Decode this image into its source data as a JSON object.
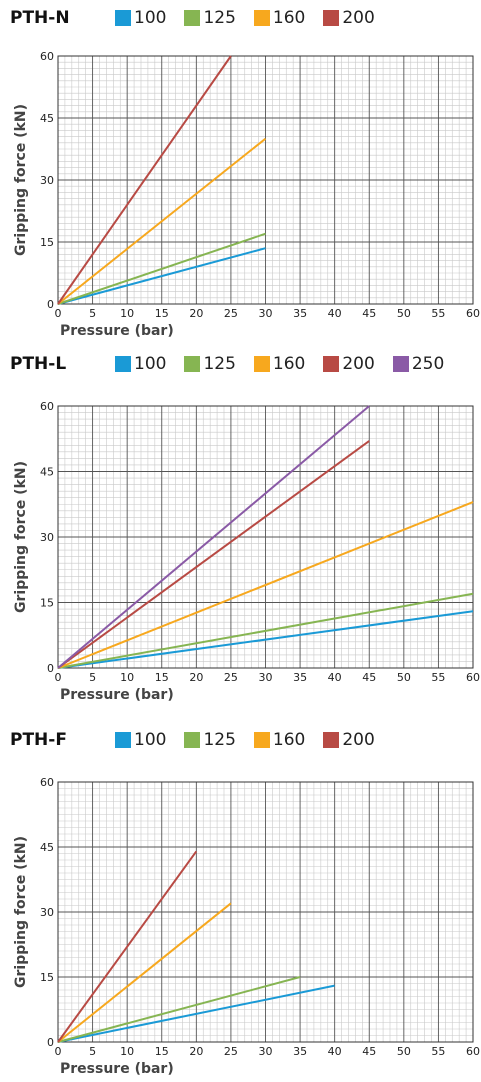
{
  "chart_data": [
    {
      "type": "line",
      "title": "PTH-N",
      "xlabel": "Pressure (bar)",
      "ylabel": "Gripping force (kN)",
      "xlim": [
        0,
        60
      ],
      "ylim": [
        0,
        60
      ],
      "xticks": [
        0,
        5,
        10,
        15,
        20,
        25,
        30,
        35,
        40,
        45,
        50,
        55,
        60
      ],
      "yticks": [
        0,
        15,
        30,
        45,
        60
      ],
      "grid": true,
      "legend_position": "top",
      "series": [
        {
          "name": "100",
          "color": "#1a9ad6",
          "x": [
            0,
            30
          ],
          "y": [
            0,
            13.5
          ]
        },
        {
          "name": "125",
          "color": "#86b552",
          "x": [
            0,
            30
          ],
          "y": [
            0,
            17
          ]
        },
        {
          "name": "160",
          "color": "#f7a81e",
          "x": [
            0,
            30
          ],
          "y": [
            0,
            40
          ]
        },
        {
          "name": "200",
          "color": "#b84a44",
          "x": [
            0,
            25
          ],
          "y": [
            0,
            60
          ]
        }
      ]
    },
    {
      "type": "line",
      "title": "PTH-L",
      "xlabel": "Pressure (bar)",
      "ylabel": "Gripping force (kN)",
      "xlim": [
        0,
        60
      ],
      "ylim": [
        0,
        60
      ],
      "xticks": [
        0,
        5,
        10,
        15,
        20,
        25,
        30,
        35,
        40,
        45,
        50,
        55,
        60
      ],
      "yticks": [
        0,
        15,
        30,
        45,
        60
      ],
      "grid": true,
      "legend_position": "top",
      "series": [
        {
          "name": "100",
          "color": "#1a9ad6",
          "x": [
            0,
            60
          ],
          "y": [
            0,
            13
          ]
        },
        {
          "name": "125",
          "color": "#86b552",
          "x": [
            0,
            60
          ],
          "y": [
            0,
            17
          ]
        },
        {
          "name": "160",
          "color": "#f7a81e",
          "x": [
            0,
            60
          ],
          "y": [
            0,
            38
          ]
        },
        {
          "name": "200",
          "color": "#b84a44",
          "x": [
            0,
            45
          ],
          "y": [
            0,
            52
          ]
        },
        {
          "name": "250",
          "color": "#8a5aa6",
          "x": [
            0,
            45
          ],
          "y": [
            0,
            60
          ]
        }
      ]
    },
    {
      "type": "line",
      "title": "PTH-F",
      "xlabel": "Pressure (bar)",
      "ylabel": "Gripping force (kN)",
      "xlim": [
        0,
        60
      ],
      "ylim": [
        0,
        60
      ],
      "xticks": [
        0,
        5,
        10,
        15,
        20,
        25,
        30,
        35,
        40,
        45,
        50,
        55,
        60
      ],
      "yticks": [
        0,
        15,
        30,
        45,
        60
      ],
      "grid": true,
      "legend_position": "top",
      "series": [
        {
          "name": "100",
          "color": "#1a9ad6",
          "x": [
            0,
            40
          ],
          "y": [
            0,
            13
          ]
        },
        {
          "name": "125",
          "color": "#86b552",
          "x": [
            0,
            35
          ],
          "y": [
            0,
            15
          ]
        },
        {
          "name": "160",
          "color": "#f7a81e",
          "x": [
            0,
            25
          ],
          "y": [
            0,
            32
          ]
        },
        {
          "name": "200",
          "color": "#b84a44",
          "x": [
            0,
            20
          ],
          "y": [
            0,
            44
          ]
        }
      ]
    }
  ]
}
